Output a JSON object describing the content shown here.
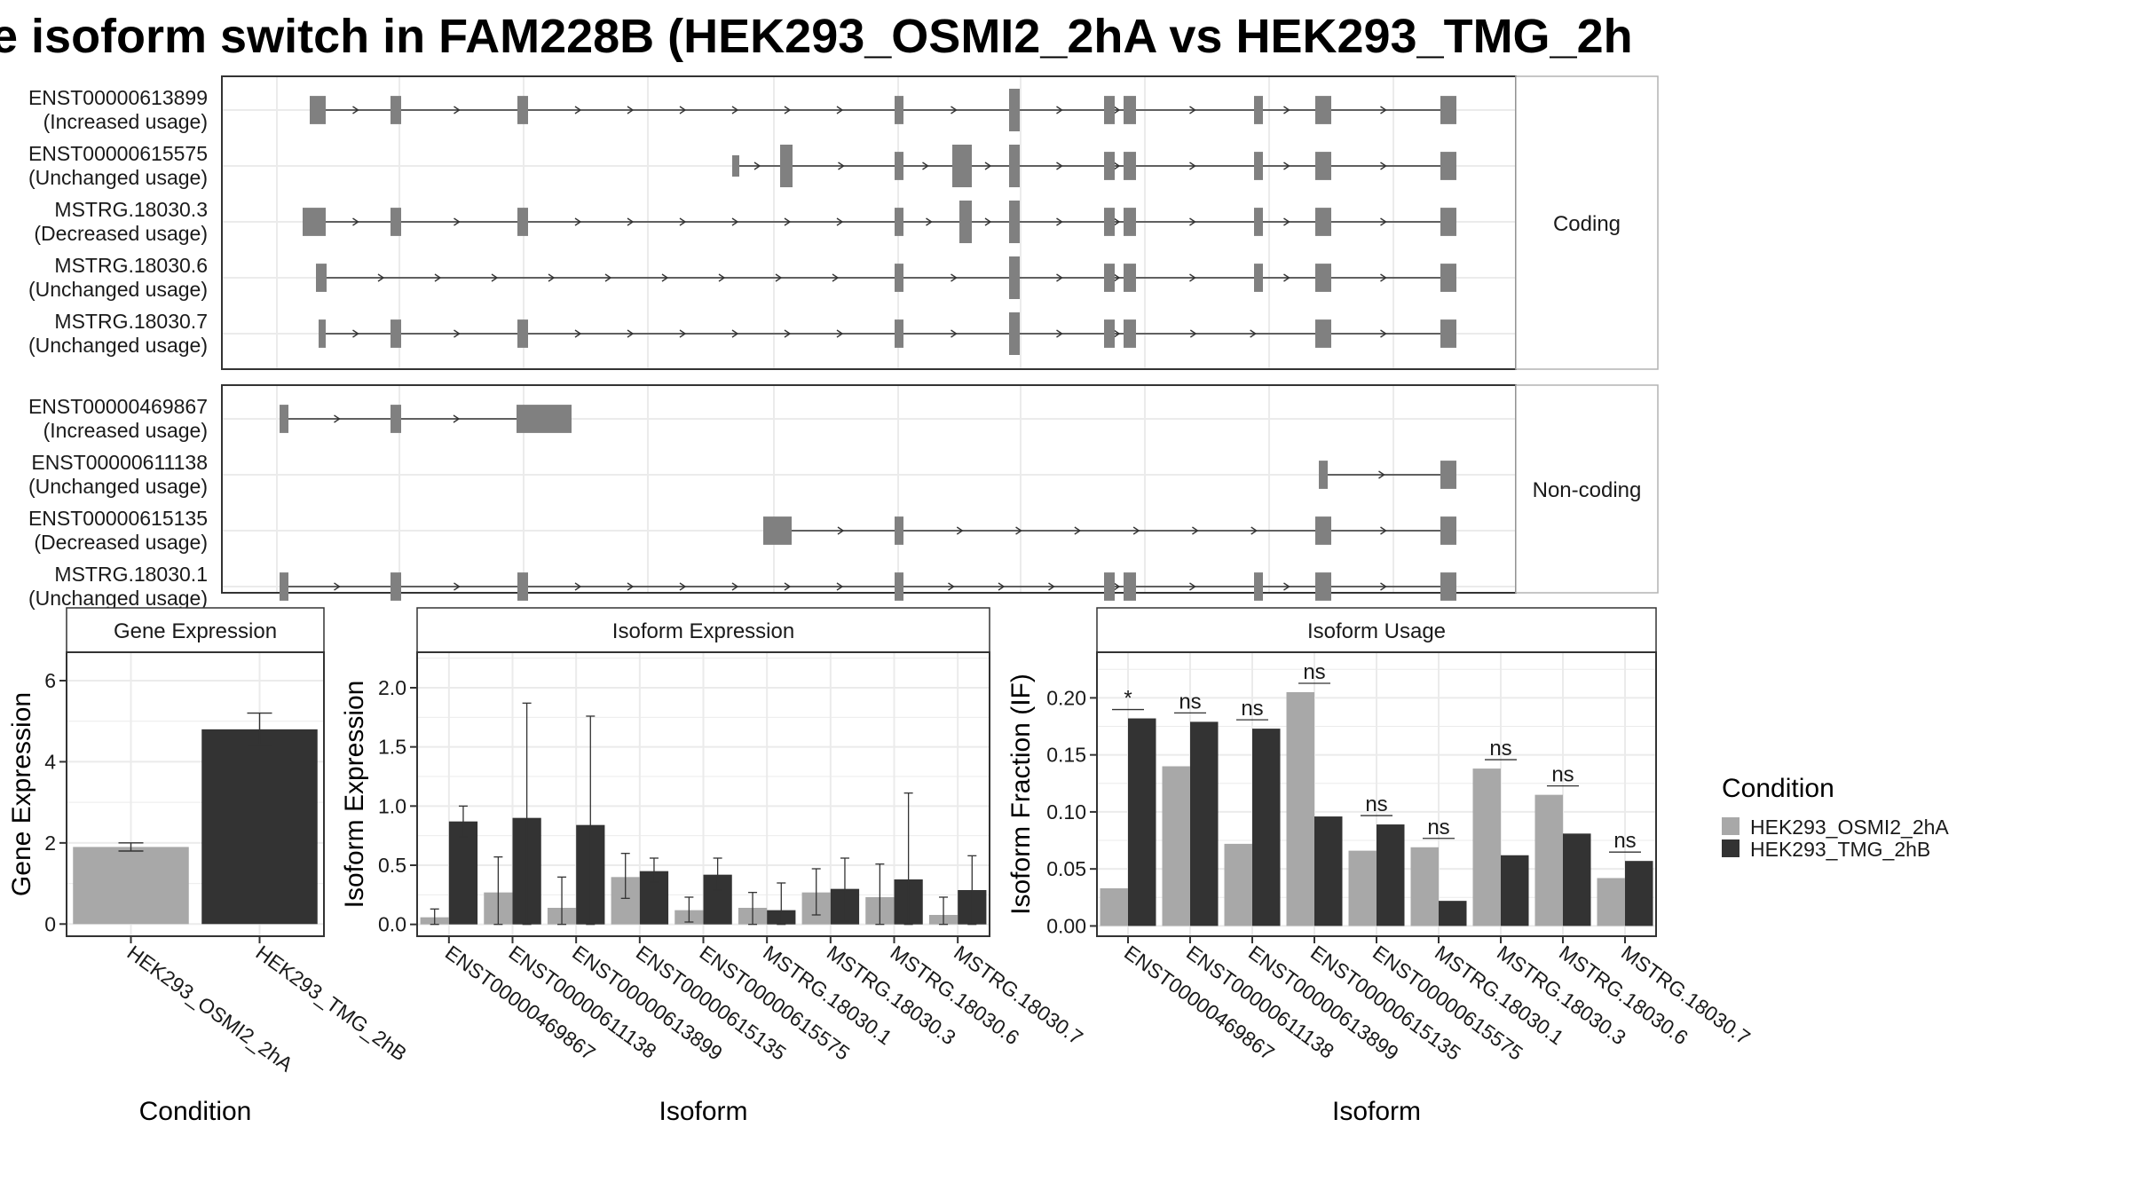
{
  "title": "e isoform switch in FAM228B (HEK293_OSMI2_2hA vs HEK293_TMG_2h",
  "structure": {
    "panels": [
      {
        "label": "Coding",
        "transcripts": [
          {
            "id": "ENST00000613899",
            "usage": "(Increased usage)",
            "exons": [
              [
                1,
                0.53
              ],
              [
                3,
                0.53
              ],
              [
                5,
                0.53
              ],
              [
                10,
                0.53
              ],
              [
                12,
                0.8
              ],
              [
                14,
                0.53
              ],
              [
                15,
                0.53
              ],
              [
                17,
                0.53
              ],
              [
                18,
                0.53
              ],
              [
                19,
                0.53
              ]
            ],
            "partial": [
              [
                12,
                0.8,
                "L"
              ]
            ]
          },
          {
            "id": "ENST00000615575",
            "usage": "(Unchanged usage)",
            "exons": [
              [
                7,
                0.4
              ],
              [
                8,
                0.8
              ],
              [
                10,
                0.53
              ],
              [
                11,
                0.8
              ],
              [
                12,
                0.8
              ],
              [
                14,
                0.53
              ],
              [
                15,
                0.53
              ],
              [
                17,
                0.53
              ],
              [
                18,
                0.53
              ],
              [
                19,
                0.53
              ]
            ],
            "partial": [
              [
                8,
                0.8,
                "L"
              ]
            ]
          },
          {
            "id": "MSTRG.18030.3",
            "usage": "(Decreased usage)",
            "exons": [
              [
                1,
                0.53
              ],
              [
                3,
                0.53
              ],
              [
                5,
                0.53
              ],
              [
                10,
                0.53
              ],
              [
                11,
                0.8
              ],
              [
                12,
                0.8
              ],
              [
                14,
                0.53
              ],
              [
                15,
                0.53
              ],
              [
                17,
                0.53
              ],
              [
                18,
                0.53
              ],
              [
                19,
                0.53
              ]
            ],
            "partial": [
              [
                11,
                0.8,
                "L"
              ]
            ]
          },
          {
            "id": "MSTRG.18030.6",
            "usage": "(Unchanged usage)",
            "exons": [
              [
                1,
                0.53
              ],
              [
                10,
                0.53
              ],
              [
                12,
                0.8
              ],
              [
                14,
                0.53
              ],
              [
                15,
                0.53
              ],
              [
                17,
                0.53
              ],
              [
                18,
                0.53
              ],
              [
                19,
                0.53
              ]
            ],
            "partial": [
              [
                12,
                0.8,
                "L"
              ]
            ]
          },
          {
            "id": "MSTRG.18030.7",
            "usage": "(Unchanged usage)",
            "exons": [
              [
                1,
                0.53
              ],
              [
                3,
                0.53
              ],
              [
                5,
                0.53
              ],
              [
                10,
                0.53
              ],
              [
                12,
                0.8
              ],
              [
                14,
                0.53
              ],
              [
                15,
                0.53
              ],
              [
                18,
                0.53
              ],
              [
                19,
                0.53
              ]
            ],
            "partial": [
              [
                12,
                0.8,
                "L"
              ]
            ]
          }
        ]
      },
      {
        "label": "Non-coding",
        "transcripts": [
          {
            "id": "ENST00000469867",
            "usage": "(Increased usage)",
            "exons": [
              [
                0,
                0.53
              ],
              [
                3,
                0.53
              ],
              [
                5,
                0.53
              ]
            ],
            "partial": []
          },
          {
            "id": "ENST00000611138",
            "usage": "(Unchanged usage)",
            "exons": [
              [
                18,
                0.53
              ],
              [
                19,
                0.53
              ]
            ],
            "partial": []
          },
          {
            "id": "ENST00000615135",
            "usage": "(Decreased usage)",
            "exons": [
              [
                9,
                0.53
              ],
              [
                10,
                0.53
              ],
              [
                18,
                0.53
              ],
              [
                19,
                0.53
              ]
            ],
            "partial": []
          },
          {
            "id": "MSTRG.18030.1",
            "usage": "(Unchanged usage)",
            "exons": [
              [
                0,
                0.53
              ],
              [
                3,
                0.53
              ],
              [
                5,
                0.53
              ],
              [
                10,
                0.53
              ],
              [
                14,
                0.53
              ],
              [
                15,
                0.53
              ],
              [
                17,
                0.53
              ],
              [
                18,
                0.53
              ],
              [
                19,
                0.53
              ]
            ],
            "partial": []
          }
        ]
      }
    ]
  },
  "chart_data": [
    {
      "type": "bar",
      "title": "Gene Expression",
      "xlabel": "Condition",
      "ylabel": "Gene Expression",
      "ylim": [
        -0.3,
        6.7
      ],
      "yticks": [
        "0",
        "2",
        "4",
        "6"
      ],
      "categories": [
        "HEK293_OSMI2_2hA",
        "HEK293_TMG_2hB"
      ],
      "values": [
        1.9,
        4.8
      ],
      "errors": [
        [
          1.8,
          2.0
        ],
        [
          4.4,
          5.2
        ]
      ],
      "colors": [
        "#a8a8a8",
        "#333333"
      ]
    },
    {
      "type": "bar",
      "title": "Isoform Expression",
      "xlabel": "Isoform",
      "ylabel": "Isoform Expression",
      "ylim": [
        -0.1,
        2.3
      ],
      "yticks": [
        "0.0",
        "0.5",
        "1.0",
        "1.5",
        "2.0"
      ],
      "categories": [
        "ENST00000469867",
        "ENST00000611138",
        "ENST00000613899",
        "ENST00000615135",
        "ENST00000615575",
        "MSTRG.18030.1",
        "MSTRG.18030.3",
        "MSTRG.18030.6",
        "MSTRG.18030.7"
      ],
      "series": [
        {
          "name": "HEK293_OSMI2_2hA",
          "color": "#a8a8a8",
          "values": [
            0.06,
            0.27,
            0.14,
            0.4,
            0.12,
            0.14,
            0.27,
            0.23,
            0.08
          ],
          "errors": [
            [
              0.0,
              0.13
            ],
            [
              0.0,
              0.57
            ],
            [
              0.0,
              0.4
            ],
            [
              0.22,
              0.6
            ],
            [
              0.02,
              0.23
            ],
            [
              0.0,
              0.27
            ],
            [
              0.08,
              0.47
            ],
            [
              0.0,
              0.51
            ],
            [
              0.0,
              0.23
            ]
          ]
        },
        {
          "name": "HEK293_TMG_2hB",
          "color": "#333333",
          "values": [
            0.87,
            0.9,
            0.84,
            0.45,
            0.42,
            0.12,
            0.3,
            0.38,
            0.29
          ],
          "errors": [
            [
              0.74,
              1.0
            ],
            [
              0.0,
              1.87
            ],
            [
              0.0,
              1.76
            ],
            [
              0.36,
              0.56
            ],
            [
              0.29,
              0.56
            ],
            [
              0.0,
              0.35
            ],
            [
              0.03,
              0.56
            ],
            [
              0.0,
              1.11
            ],
            [
              0.0,
              0.58
            ]
          ]
        }
      ]
    },
    {
      "type": "bar",
      "title": "Isoform Usage",
      "xlabel": "Isoform",
      "ylabel": "Isoform Fraction (IF)",
      "ylim": [
        -0.009,
        0.24
      ],
      "yticks": [
        "0.00",
        "0.05",
        "0.10",
        "0.15",
        "0.20"
      ],
      "categories": [
        "ENST00000469867",
        "ENST00000611138",
        "ENST00000613899",
        "ENST00000615135",
        "ENST00000615575",
        "MSTRG.18030.1",
        "MSTRG.18030.3",
        "MSTRG.18030.6",
        "MSTRG.18030.7"
      ],
      "series": [
        {
          "name": "HEK293_OSMI2_2hA",
          "color": "#a8a8a8",
          "values": [
            0.033,
            0.14,
            0.072,
            0.205,
            0.066,
            0.069,
            0.138,
            0.115,
            0.042
          ]
        },
        {
          "name": "HEK293_TMG_2hB",
          "color": "#333333",
          "values": [
            0.182,
            0.179,
            0.173,
            0.096,
            0.089,
            0.022,
            0.062,
            0.081,
            0.057
          ]
        }
      ],
      "significance": [
        "*",
        "ns",
        "ns",
        "ns",
        "ns",
        "ns",
        "ns",
        "ns",
        "ns"
      ]
    }
  ],
  "legend": {
    "title": "Condition",
    "items": [
      {
        "label": "HEK293_OSMI2_2hA",
        "color": "#a8a8a8"
      },
      {
        "label": "HEK293_TMG_2hB",
        "color": "#333333"
      }
    ]
  }
}
